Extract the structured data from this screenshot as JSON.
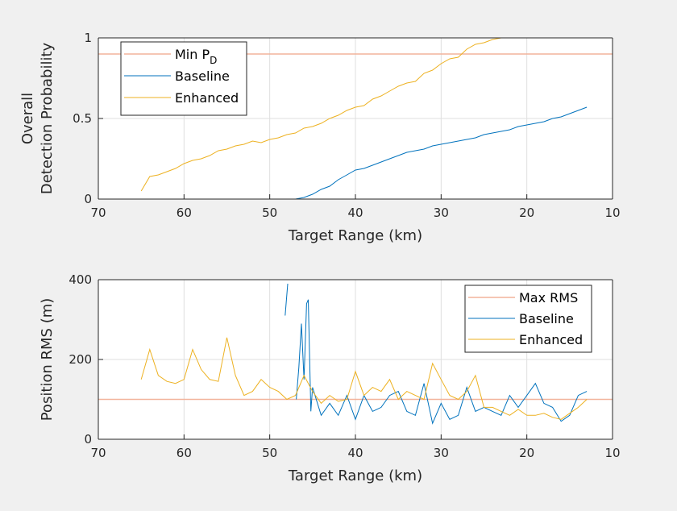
{
  "chart_data": [
    {
      "type": "line",
      "xlabel": "Target Range (km)",
      "ylabel": [
        "Overall",
        "Detection Probability"
      ],
      "xlim": [
        10,
        70
      ],
      "x_reversed": true,
      "ylim": [
        0,
        1
      ],
      "xticks": [
        70,
        60,
        50,
        40,
        30,
        20,
        10
      ],
      "yticks": [
        0,
        0.5,
        1
      ],
      "grid": true,
      "legend_placement": "top-left",
      "threshold": {
        "name": "Min P",
        "subscript": "D",
        "value": 0.9,
        "color": "#F2B49C"
      },
      "x": [
        65,
        64,
        63,
        62,
        61,
        60,
        59,
        58,
        57,
        56,
        55,
        54,
        53,
        52,
        51,
        50,
        49,
        48,
        47,
        46,
        45,
        44,
        43,
        42,
        41,
        40,
        39,
        38,
        37,
        36,
        35,
        34,
        33,
        32,
        31,
        30,
        29,
        28,
        27,
        26,
        25,
        24,
        23,
        22,
        21,
        20,
        19,
        18,
        17,
        16,
        15,
        14,
        13
      ],
      "series": [
        {
          "name": "Baseline",
          "color": "#0072BD",
          "values": [
            0,
            0,
            0,
            0,
            0,
            0,
            0,
            0,
            0,
            0,
            0,
            0,
            0,
            0,
            0,
            0,
            0,
            0,
            0,
            0.01,
            0.03,
            0.06,
            0.08,
            0.12,
            0.15,
            0.18,
            0.19,
            0.21,
            0.23,
            0.25,
            0.27,
            0.29,
            0.3,
            0.31,
            0.33,
            0.34,
            0.35,
            0.36,
            0.37,
            0.38,
            0.4,
            0.41,
            0.42,
            0.43,
            0.45,
            0.46,
            0.47,
            0.48,
            0.5,
            0.51,
            0.53,
            0.55,
            0.57
          ]
        },
        {
          "name": "Enhanced",
          "color": "#EDB120",
          "values": [
            0.05,
            0.14,
            0.15,
            0.17,
            0.19,
            0.22,
            0.24,
            0.25,
            0.27,
            0.3,
            0.31,
            0.33,
            0.34,
            0.36,
            0.35,
            0.37,
            0.38,
            0.4,
            0.41,
            0.44,
            0.45,
            0.47,
            0.5,
            0.52,
            0.55,
            0.57,
            0.58,
            0.62,
            0.64,
            0.67,
            0.7,
            0.72,
            0.73,
            0.78,
            0.8,
            0.84,
            0.87,
            0.88,
            0.93,
            0.96,
            0.97,
            0.99,
            1,
            1,
            1,
            1,
            1,
            1,
            1,
            1,
            1,
            1,
            1
          ]
        }
      ]
    },
    {
      "type": "line",
      "xlabel": "Target Range (km)",
      "ylabel": [
        "Position RMS (m)"
      ],
      "xlim": [
        10,
        70
      ],
      "x_reversed": true,
      "ylim": [
        0,
        400
      ],
      "xticks": [
        70,
        60,
        50,
        40,
        30,
        20,
        10
      ],
      "yticks": [
        0,
        200,
        400
      ],
      "grid": true,
      "legend_placement": "top-right",
      "threshold": {
        "name": "Max RMS",
        "value": 100,
        "color": "#F2B49C"
      },
      "series": [
        {
          "name": "Baseline",
          "color": "#0072BD",
          "x": [
            48.2,
            47.9,
            47.6,
            46.9,
            46.6,
            46.3,
            46.0,
            45.7,
            45.5,
            45.2,
            45,
            44,
            43,
            42,
            41,
            40,
            39,
            38,
            37,
            36,
            35,
            34,
            33,
            32,
            31,
            30,
            29,
            28,
            27,
            26,
            25,
            24,
            23,
            22,
            21,
            20,
            19,
            18,
            17,
            16,
            15,
            14,
            13
          ],
          "values": [
            310,
            390,
            null,
            100,
            180,
            290,
            150,
            340,
            350,
            70,
            130,
            60,
            90,
            60,
            110,
            50,
            110,
            70,
            80,
            110,
            120,
            70,
            60,
            140,
            40,
            90,
            50,
            60,
            130,
            70,
            80,
            70,
            60,
            110,
            80,
            110,
            140,
            90,
            80,
            45,
            60,
            110,
            120
          ]
        },
        {
          "name": "Enhanced",
          "color": "#EDB120",
          "x": [
            65,
            64,
            63,
            62,
            61,
            60,
            59,
            58,
            57,
            56,
            55,
            54,
            53,
            52,
            51,
            50,
            49,
            48,
            47,
            46,
            45,
            44,
            43,
            42,
            41,
            40,
            39,
            38,
            37,
            36,
            35,
            34,
            33,
            32,
            31,
            30,
            29,
            28,
            27,
            26,
            25,
            24,
            23,
            22,
            21,
            20,
            19,
            18,
            17,
            16,
            15,
            14,
            13
          ],
          "values": [
            150,
            225,
            160,
            145,
            140,
            150,
            225,
            175,
            150,
            145,
            255,
            160,
            110,
            120,
            150,
            130,
            120,
            100,
            110,
            160,
            120,
            90,
            110,
            95,
            100,
            170,
            110,
            130,
            120,
            150,
            100,
            120,
            110,
            100,
            190,
            150,
            110,
            100,
            120,
            160,
            80,
            80,
            70,
            60,
            75,
            60,
            60,
            65,
            55,
            50,
            65,
            80,
            100
          ]
        }
      ]
    }
  ]
}
